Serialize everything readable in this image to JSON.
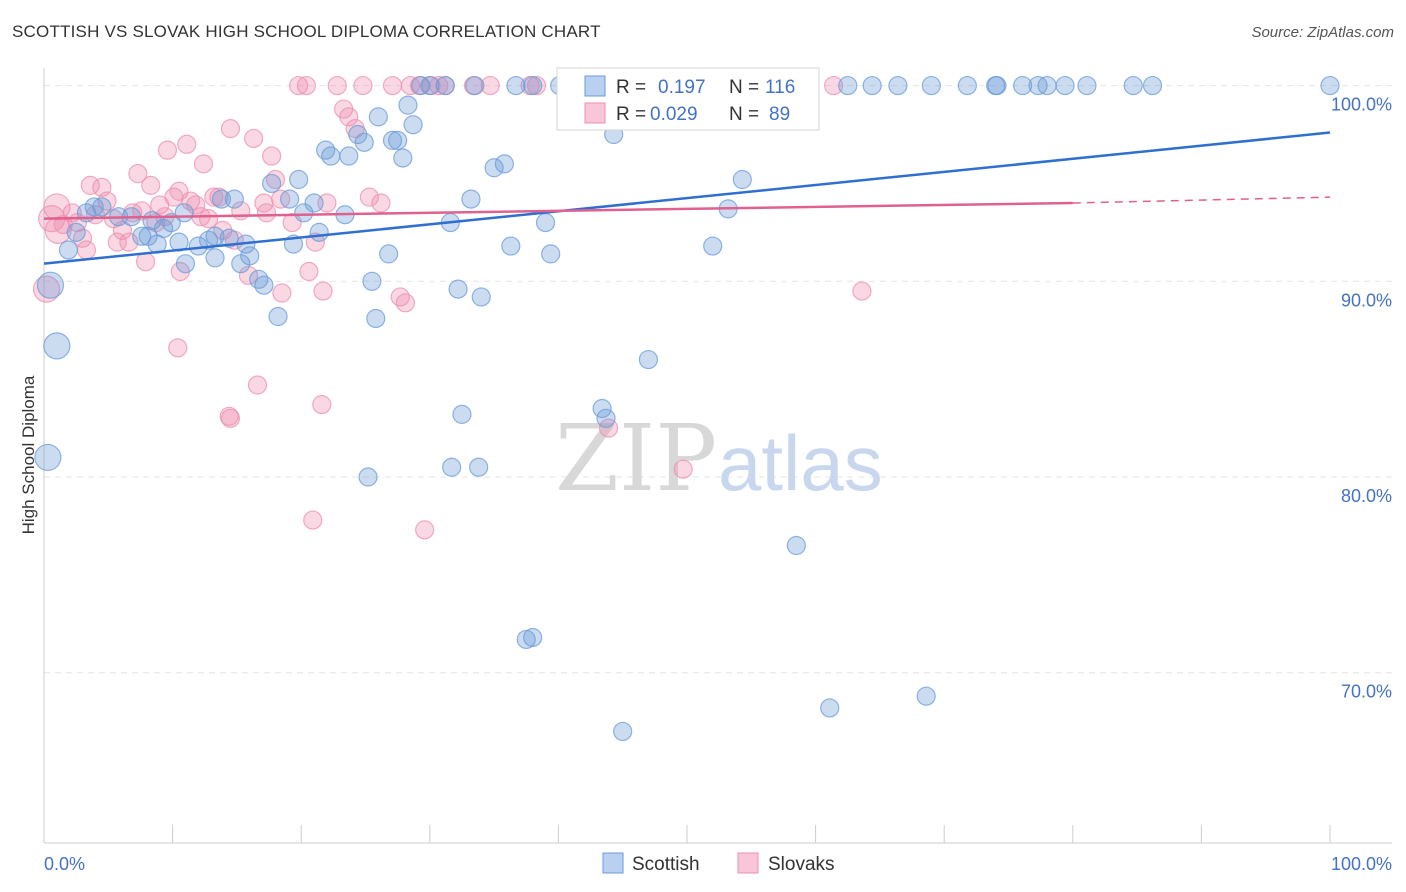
{
  "header": {
    "title": "SCOTTISH VS SLOVAK HIGH SCHOOL DIPLOMA CORRELATION CHART",
    "source": "Source: ZipAtlas.com"
  },
  "watermark": {
    "zip": "ZIP",
    "atlas": "atlas"
  },
  "colors": {
    "scottish": "#6b9bd8",
    "slovaks": "#ee8fb0",
    "scottish_line": "#2f6fd0",
    "slovaks_line": "#e0608f",
    "axis_text": "#4472c4"
  },
  "legend": {
    "scottish": {
      "r_label": "R =",
      "r_value": "0.197",
      "n_label": "N =",
      "n_value": "116"
    },
    "slovaks": {
      "r_label": "R =",
      "r_value": "0.029",
      "n_label": "N =",
      "n_value": "89"
    }
  },
  "bottom_legend": {
    "scottish": "Scottish",
    "slovaks": "Slovaks"
  },
  "chart_data": {
    "type": "scatter",
    "title": "SCOTTISH VS SLOVAK HIGH SCHOOL DIPLOMA CORRELATION CHART",
    "xlabel": "",
    "ylabel": "High School Diploma",
    "x_tick_labels": [
      "0.0%",
      "100.0%"
    ],
    "y_tick_labels": [
      "100.0%",
      "90.0%",
      "80.0%",
      "70.0%"
    ],
    "y_ticks": [
      100,
      90,
      80,
      70
    ],
    "xlim": [
      0,
      100
    ],
    "ylim": [
      61.3,
      101.0
    ],
    "grid": true,
    "legend_position": "top-center",
    "series": [
      {
        "name": "Scottish",
        "r": 0.197,
        "n": 116,
        "trend": {
          "x": [
            0,
            100
          ],
          "y": [
            90.9,
            97.6
          ]
        },
        "points": [
          [
            0.5,
            89.8
          ],
          [
            1.0,
            86.7
          ],
          [
            1.9,
            91.6
          ],
          [
            2.5,
            92.5
          ],
          [
            0.3,
            81.0
          ],
          [
            3.3,
            93.5
          ],
          [
            3.9,
            93.8
          ],
          [
            4.5,
            93.8
          ],
          [
            5.8,
            93.3
          ],
          [
            6.8,
            93.3
          ],
          [
            7.6,
            92.3
          ],
          [
            8.4,
            93.1
          ],
          [
            8.8,
            91.9
          ],
          [
            9.3,
            92.7
          ],
          [
            9.9,
            93.0
          ],
          [
            10.5,
            92.0
          ],
          [
            10.9,
            93.5
          ],
          [
            11.0,
            90.9
          ],
          [
            12.0,
            91.8
          ],
          [
            12.8,
            92.1
          ],
          [
            13.3,
            92.3
          ],
          [
            13.3,
            91.2
          ],
          [
            13.8,
            94.2
          ],
          [
            14.4,
            92.2
          ],
          [
            14.8,
            94.2
          ],
          [
            15.3,
            90.9
          ],
          [
            15.7,
            91.9
          ],
          [
            16.0,
            91.3
          ],
          [
            16.7,
            90.1
          ],
          [
            17.1,
            89.8
          ],
          [
            17.7,
            95.0
          ],
          [
            18.2,
            88.2
          ],
          [
            19.1,
            94.2
          ],
          [
            19.4,
            91.9
          ],
          [
            19.8,
            95.2
          ],
          [
            20.2,
            93.5
          ],
          [
            21.0,
            94.0
          ],
          [
            21.4,
            92.5
          ],
          [
            21.9,
            96.7
          ],
          [
            22.3,
            96.4
          ],
          [
            23.4,
            93.4
          ],
          [
            23.7,
            96.4
          ],
          [
            24.4,
            97.5
          ],
          [
            24.9,
            97.1
          ],
          [
            25.5,
            90.0
          ],
          [
            25.8,
            88.1
          ],
          [
            26.0,
            98.4
          ],
          [
            26.8,
            91.4
          ],
          [
            27.1,
            97.2
          ],
          [
            27.5,
            97.2
          ],
          [
            27.9,
            96.3
          ],
          [
            28.3,
            99.0
          ],
          [
            28.7,
            98.0
          ],
          [
            29.3,
            100.0
          ],
          [
            30.0,
            100.0
          ],
          [
            31.2,
            100.0
          ],
          [
            31.6,
            93.0
          ],
          [
            32.2,
            89.6
          ],
          [
            32.5,
            83.2
          ],
          [
            31.7,
            80.5
          ],
          [
            33.5,
            100.0
          ],
          [
            33.2,
            94.2
          ],
          [
            34.0,
            89.2
          ],
          [
            35.0,
            95.8
          ],
          [
            35.8,
            96.0
          ],
          [
            36.3,
            91.8
          ],
          [
            36.7,
            100.0
          ],
          [
            38.0,
            100.0
          ],
          [
            39.0,
            93.0
          ],
          [
            39.4,
            91.4
          ],
          [
            38.0,
            71.8
          ],
          [
            37.5,
            71.7
          ],
          [
            40.1,
            100.0
          ],
          [
            40.6,
            100.0
          ],
          [
            43.4,
            83.5
          ],
          [
            43.7,
            83.0
          ],
          [
            44.0,
            100.0
          ],
          [
            44.3,
            97.5
          ],
          [
            45.3,
            100.0
          ],
          [
            46.5,
            100.0
          ],
          [
            45.0,
            67.0
          ],
          [
            45.5,
            100.0
          ],
          [
            46.0,
            100.0
          ],
          [
            47.0,
            86.0
          ],
          [
            47.8,
            100.0
          ],
          [
            48.6,
            100.0
          ],
          [
            49.4,
            100.0
          ],
          [
            49.9,
            100.0
          ],
          [
            50.5,
            100.0
          ],
          [
            51.0,
            100.0
          ],
          [
            52.0,
            91.8
          ],
          [
            52.5,
            100.0
          ],
          [
            53.2,
            93.7
          ],
          [
            54.1,
            100.0
          ],
          [
            54.3,
            95.2
          ],
          [
            55.0,
            100.0
          ],
          [
            56.0,
            100.0
          ],
          [
            57.4,
            100.0
          ],
          [
            58.1,
            100.0
          ],
          [
            58.5,
            76.5
          ],
          [
            61.1,
            68.2
          ],
          [
            62.5,
            100.0
          ],
          [
            64.4,
            100.0
          ],
          [
            66.4,
            100.0
          ],
          [
            68.6,
            68.8
          ],
          [
            69.0,
            100.0
          ],
          [
            71.8,
            100.0
          ],
          [
            74.0,
            100.0
          ],
          [
            74.1,
            100.0
          ],
          [
            76.1,
            100.0
          ],
          [
            77.3,
            100.0
          ],
          [
            78.0,
            100.0
          ],
          [
            79.4,
            100.0
          ],
          [
            81.1,
            100.0
          ],
          [
            84.7,
            100.0
          ],
          [
            86.2,
            100.0
          ],
          [
            100.0,
            100.0
          ],
          [
            25.2,
            80.0
          ],
          [
            33.8,
            80.5
          ],
          [
            8.1,
            92.3
          ]
        ]
      },
      {
        "name": "Slovaks",
        "r": 0.029,
        "n": 89,
        "trend": {
          "x": [
            0,
            80
          ],
          "y": [
            93.2,
            94.0
          ]
        },
        "trend_dashed": {
          "x": [
            80,
            100
          ],
          "y": [
            94.0,
            94.3
          ]
        },
        "points": [
          [
            0.2,
            89.6
          ],
          [
            0.6,
            93.2
          ],
          [
            1.1,
            92.6
          ],
          [
            1.5,
            92.9
          ],
          [
            2.2,
            93.5
          ],
          [
            2.6,
            93.0
          ],
          [
            3.0,
            92.2
          ],
          [
            3.3,
            91.6
          ],
          [
            3.6,
            94.9
          ],
          [
            4.0,
            93.4
          ],
          [
            4.5,
            94.8
          ],
          [
            4.9,
            94.1
          ],
          [
            5.4,
            93.2
          ],
          [
            5.7,
            92.0
          ],
          [
            6.1,
            92.6
          ],
          [
            6.6,
            92.0
          ],
          [
            6.9,
            93.5
          ],
          [
            7.3,
            95.5
          ],
          [
            7.6,
            93.6
          ],
          [
            7.9,
            91.0
          ],
          [
            8.3,
            94.9
          ],
          [
            8.7,
            93.0
          ],
          [
            9.0,
            93.9
          ],
          [
            9.4,
            93.3
          ],
          [
            9.6,
            96.7
          ],
          [
            10.1,
            94.3
          ],
          [
            10.5,
            94.6
          ],
          [
            10.6,
            90.5
          ],
          [
            11.1,
            97.0
          ],
          [
            11.4,
            94.1
          ],
          [
            11.8,
            93.9
          ],
          [
            12.2,
            93.3
          ],
          [
            12.4,
            96.0
          ],
          [
            12.8,
            93.2
          ],
          [
            13.2,
            94.3
          ],
          [
            13.6,
            94.3
          ],
          [
            13.9,
            92.6
          ],
          [
            14.5,
            97.8
          ],
          [
            14.8,
            92.1
          ],
          [
            15.3,
            93.6
          ],
          [
            15.9,
            90.3
          ],
          [
            16.3,
            97.3
          ],
          [
            16.6,
            84.7
          ],
          [
            17.1,
            94.0
          ],
          [
            17.3,
            93.5
          ],
          [
            17.7,
            96.4
          ],
          [
            18.0,
            95.2
          ],
          [
            18.5,
            89.4
          ],
          [
            19.3,
            93.0
          ],
          [
            19.8,
            100.0
          ],
          [
            20.4,
            100.0
          ],
          [
            20.6,
            90.5
          ],
          [
            21.1,
            92.0
          ],
          [
            21.6,
            83.7
          ],
          [
            22.0,
            94.0
          ],
          [
            22.8,
            100.0
          ],
          [
            23.3,
            98.8
          ],
          [
            23.7,
            98.4
          ],
          [
            24.2,
            97.8
          ],
          [
            24.8,
            100.0
          ],
          [
            25.3,
            94.3
          ],
          [
            26.2,
            94.0
          ],
          [
            27.1,
            100.0
          ],
          [
            27.7,
            89.2
          ],
          [
            28.1,
            88.9
          ],
          [
            28.5,
            100.0
          ],
          [
            29.2,
            100.0
          ],
          [
            29.6,
            77.3
          ],
          [
            30.1,
            100.0
          ],
          [
            30.7,
            100.0
          ],
          [
            31.2,
            100.0
          ],
          [
            33.4,
            100.0
          ],
          [
            34.7,
            100.0
          ],
          [
            37.8,
            100.0
          ],
          [
            38.3,
            100.0
          ],
          [
            42.5,
            100.0
          ],
          [
            43.9,
            82.5
          ],
          [
            49.7,
            80.4
          ],
          [
            53.1,
            100.0
          ],
          [
            57.6,
            100.0
          ],
          [
            61.4,
            100.0
          ],
          [
            63.6,
            89.5
          ],
          [
            1.0,
            93.8
          ],
          [
            14.4,
            83.1
          ],
          [
            10.4,
            86.6
          ],
          [
            14.5,
            83.0
          ],
          [
            20.9,
            77.8
          ],
          [
            21.7,
            89.5
          ],
          [
            18.4,
            94.2
          ]
        ]
      }
    ]
  }
}
